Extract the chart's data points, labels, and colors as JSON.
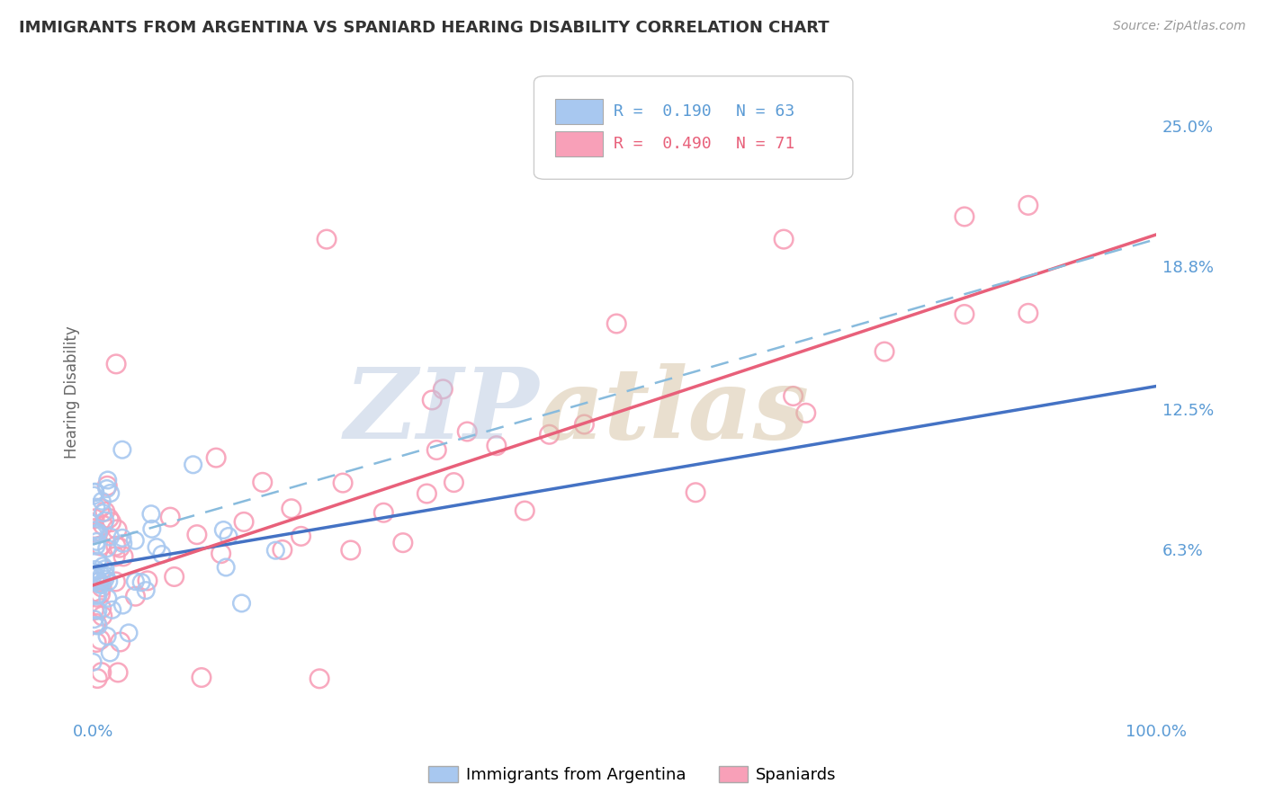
{
  "title": "IMMIGRANTS FROM ARGENTINA VS SPANIARD HEARING DISABILITY CORRELATION CHART",
  "source": "Source: ZipAtlas.com",
  "ylabel": "Hearing Disability",
  "y_tick_labels": [
    "6.3%",
    "12.5%",
    "18.8%",
    "25.0%"
  ],
  "y_tick_values": [
    0.063,
    0.125,
    0.188,
    0.25
  ],
  "x_range": [
    0,
    1.0
  ],
  "y_range": [
    -0.01,
    0.275
  ],
  "legend_r1": "R =  0.190",
  "legend_n1": "N = 63",
  "legend_r2": "R =  0.490",
  "legend_n2": "N = 71",
  "color_argentina": "#a8c8f0",
  "color_spain": "#f8a0b8",
  "color_line_argentina": "#7ab0d8",
  "color_line_spain": "#e8607a",
  "background_color": "#ffffff",
  "grid_color": "#dddddd",
  "title_color": "#333333",
  "tick_label_color": "#5b9bd5",
  "line_arg_intercept": 0.055,
  "line_arg_slope": 0.08,
  "line_spain_intercept": 0.047,
  "line_spain_slope": 0.155
}
